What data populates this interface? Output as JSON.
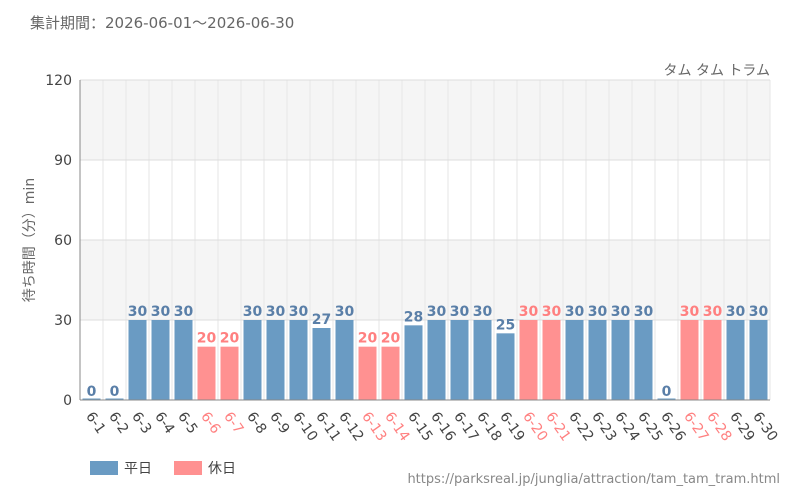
{
  "header": {
    "period": "集計期間：2026-06-01～2026-06-30",
    "attraction_name": "タム タム トラム"
  },
  "legend": {
    "weekday_label": "平日",
    "holiday_label": "休日"
  },
  "footer": {
    "source_url": "https://parksreal.jp/junglia/attraction/tam_tam_tram.html"
  },
  "colors": {
    "weekday": "#6a9bc3",
    "holiday": "#ff9191",
    "weekday_text": "#5a7fa8",
    "holiday_text": "#ff8080",
    "band": "#f5f5f5",
    "grid": "#dddddd"
  },
  "chart_data": {
    "type": "bar",
    "title": "タム タム トラム",
    "ylabel": "待ち時間（分）min",
    "xlabel": "",
    "ylim": [
      0,
      120
    ],
    "yticks": [
      0,
      30,
      60,
      90,
      120
    ],
    "categories": [
      "6-1",
      "6-2",
      "6-3",
      "6-4",
      "6-5",
      "6-6",
      "6-7",
      "6-8",
      "6-9",
      "6-10",
      "6-11",
      "6-12",
      "6-13",
      "6-14",
      "6-15",
      "6-16",
      "6-17",
      "6-18",
      "6-19",
      "6-20",
      "6-21",
      "6-22",
      "6-23",
      "6-24",
      "6-25",
      "6-26",
      "6-27",
      "6-28",
      "6-29",
      "6-30"
    ],
    "values": [
      0,
      0,
      30,
      30,
      30,
      20,
      20,
      30,
      30,
      30,
      27,
      30,
      20,
      20,
      28,
      30,
      30,
      30,
      25,
      30,
      30,
      30,
      30,
      30,
      30,
      0,
      30,
      30,
      30,
      30
    ],
    "day_type": [
      "weekday",
      "weekday",
      "weekday",
      "weekday",
      "weekday",
      "holiday",
      "holiday",
      "weekday",
      "weekday",
      "weekday",
      "weekday",
      "weekday",
      "holiday",
      "holiday",
      "weekday",
      "weekday",
      "weekday",
      "weekday",
      "weekday",
      "holiday",
      "holiday",
      "weekday",
      "weekday",
      "weekday",
      "weekday",
      "weekday",
      "holiday",
      "holiday",
      "weekday",
      "weekday"
    ],
    "series": [
      {
        "name": "平日",
        "type": "weekday"
      },
      {
        "name": "休日",
        "type": "holiday"
      }
    ],
    "grid": true,
    "legend_position": "bottom-left"
  }
}
